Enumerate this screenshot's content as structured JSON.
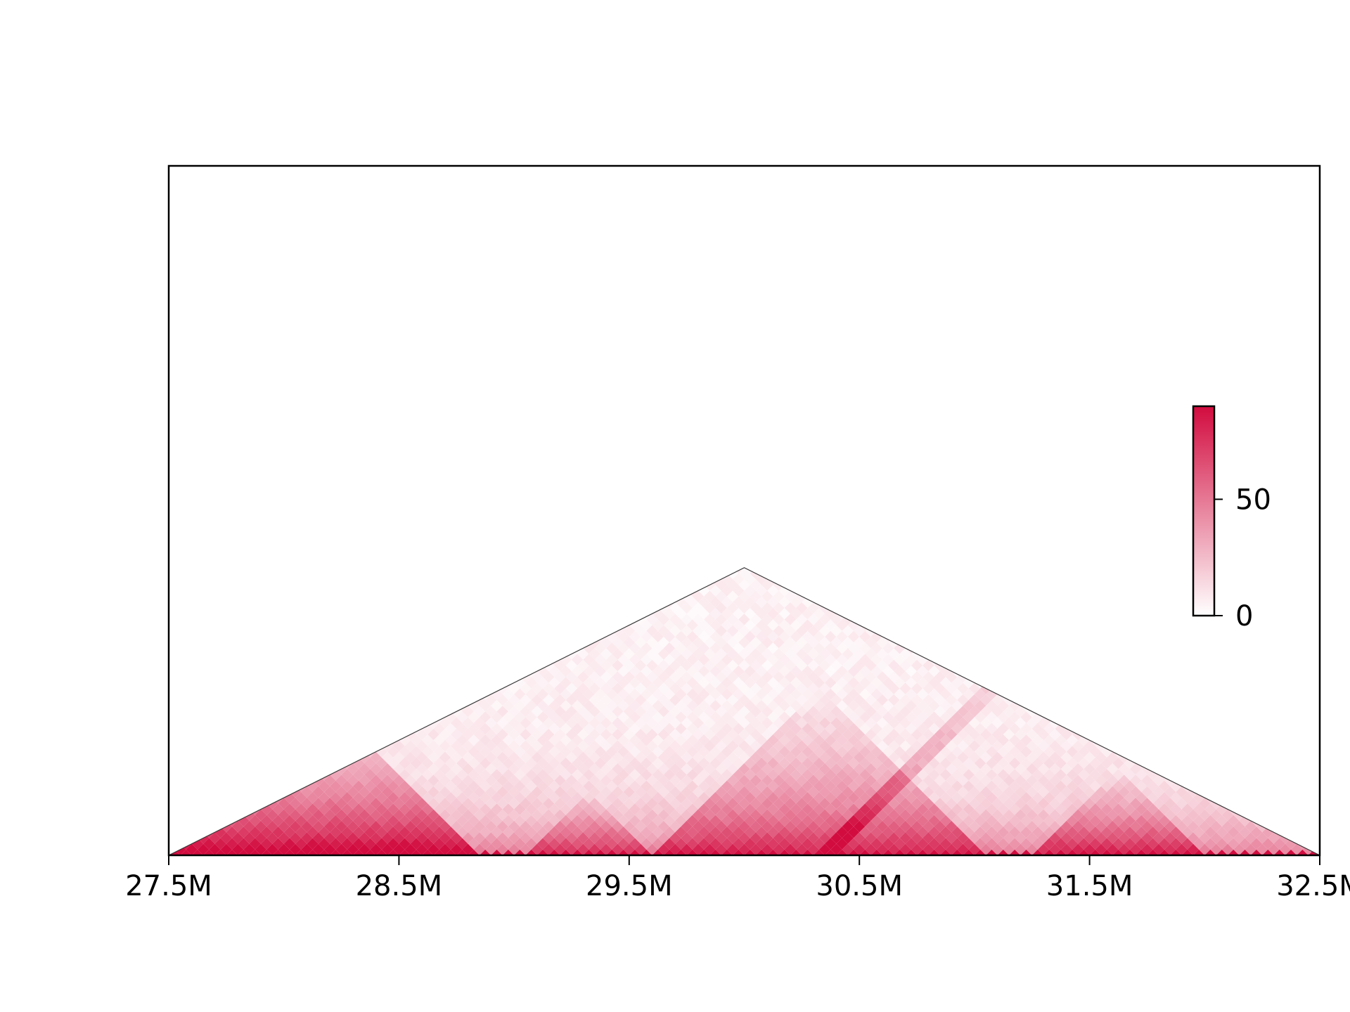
{
  "chart_data": {
    "type": "heatmap",
    "title": "",
    "xlabel": "",
    "ylabel": "",
    "xlim": [
      27.5,
      32.5
    ],
    "x_ticks": [
      {
        "value": 27.5,
        "label": "27.5M"
      },
      {
        "value": 28.5,
        "label": "28.5M"
      },
      {
        "value": 29.5,
        "label": "29.5M"
      },
      {
        "value": 30.5,
        "label": "30.5M"
      },
      {
        "value": 31.5,
        "label": "31.5M"
      },
      {
        "value": 32.5,
        "label": "32.5M"
      }
    ],
    "heatmap": {
      "layout": "triangular contact map, diagonal along x axis",
      "max_distance": 2.5,
      "value_range": [
        0,
        90
      ],
      "colormap": [
        "#ffffff",
        "#d20c3f"
      ],
      "diagonal_band_value": 90,
      "domains": [
        {
          "start": 27.5,
          "end": 28.85,
          "strength": 0.55
        },
        {
          "start": 29.05,
          "end": 29.6,
          "strength": 0.35
        },
        {
          "start": 29.6,
          "end": 31.05,
          "strength": 0.4
        },
        {
          "start": 31.25,
          "end": 32.0,
          "strength": 0.4
        }
      ],
      "stripes": [
        {
          "position": 30.35,
          "direction": "right",
          "strength": 0.45
        }
      ]
    },
    "colorbar": {
      "ticks": [
        {
          "value": 0,
          "label": "0"
        },
        {
          "value": 50,
          "label": "50"
        }
      ],
      "min": 0,
      "max": 90
    },
    "grid": false,
    "legend": "none"
  }
}
